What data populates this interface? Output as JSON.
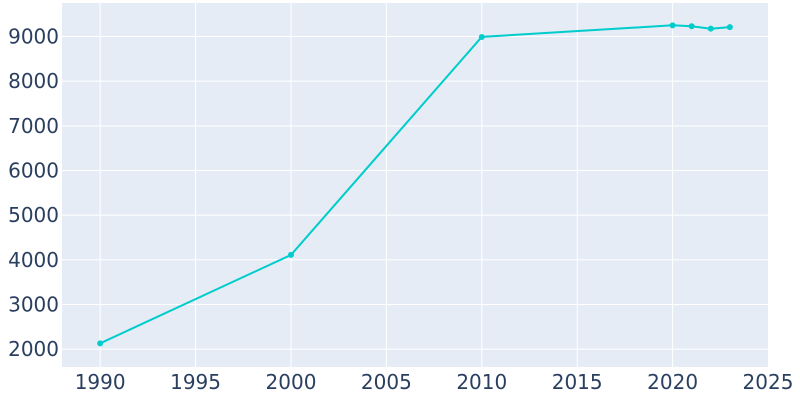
{
  "chart_data": {
    "type": "line",
    "title": "",
    "xlabel": "",
    "ylabel": "",
    "xlim": [
      1988,
      2025
    ],
    "ylim": [
      1600,
      9750
    ],
    "x_ticks": [
      1990,
      1995,
      2000,
      2005,
      2010,
      2015,
      2020,
      2025
    ],
    "y_ticks": [
      2000,
      3000,
      4000,
      5000,
      6000,
      7000,
      8000,
      9000
    ],
    "grid": true,
    "legend": "none",
    "series": [
      {
        "color": "#00cccc",
        "x": [
          1990,
          2000,
          2010,
          2020,
          2021,
          2022,
          2023
        ],
        "y": [
          2130,
          4110,
          8990,
          9250,
          9230,
          9175,
          9210
        ]
      }
    ]
  },
  "colors": {
    "plot_background": "#e5ecf6",
    "grid": "#ffffff",
    "tick_text": "#2a3f5f"
  }
}
